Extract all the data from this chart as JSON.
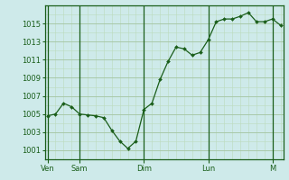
{
  "background_color": "#ceeaea",
  "plot_bg_color": "#ceeaea",
  "grid_color_major": "#a8c8a8",
  "grid_color_minor": "#bcdabc",
  "line_color": "#1a5e1a",
  "marker_color": "#1a5e1a",
  "yticks": [
    1001,
    1003,
    1005,
    1007,
    1009,
    1011,
    1013,
    1015
  ],
  "ylim": [
    1000.0,
    1017.0
  ],
  "day_labels": [
    "Ven",
    "Sam",
    "Dim",
    "Lun",
    "M"
  ],
  "day_positions": [
    0,
    12,
    36,
    60,
    84
  ],
  "xlim": [
    -1,
    88
  ],
  "x_values": [
    0,
    3,
    6,
    9,
    12,
    15,
    18,
    21,
    24,
    27,
    30,
    33,
    36,
    39,
    42,
    45,
    48,
    51,
    54,
    57,
    60,
    63,
    66,
    69,
    72,
    75,
    78,
    81,
    84,
    87
  ],
  "y_values": [
    1004.8,
    1005.0,
    1006.2,
    1005.8,
    1005.0,
    1004.9,
    1004.8,
    1004.6,
    1003.2,
    1002.0,
    1001.2,
    1002.0,
    1005.5,
    1006.2,
    1008.8,
    1010.8,
    1012.4,
    1012.2,
    1011.5,
    1011.8,
    1013.2,
    1015.2,
    1015.5,
    1015.5,
    1015.8,
    1016.2,
    1015.2,
    1015.2,
    1015.5,
    1014.8
  ],
  "tick_label_fontsize": 6.0,
  "tick_label_color": "#1a5e1a",
  "spine_color": "#1a5e1a"
}
